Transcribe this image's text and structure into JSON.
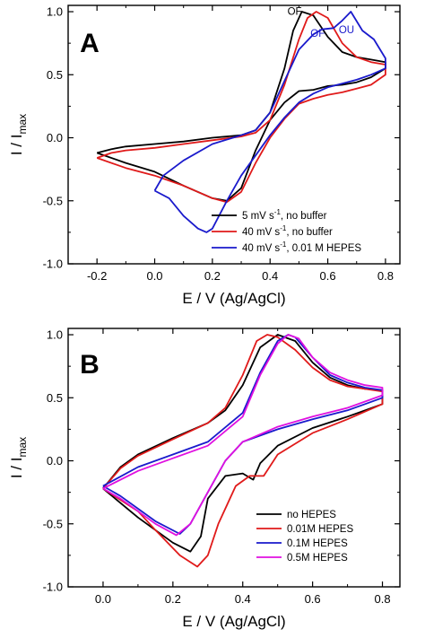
{
  "chart_data": [
    {
      "type": "line",
      "panel": "A",
      "xlabel": "E / V (Ag/AgCl)",
      "ylabel": "I / I",
      "ylabel_sub": "max",
      "xlim": [
        -0.3,
        0.85
      ],
      "ylim": [
        -1.0,
        1.05
      ],
      "xticks": [
        -0.2,
        0.0,
        0.2,
        0.4,
        0.6,
        0.8
      ],
      "xtick_labels": [
        "-0.2",
        "0.0",
        "0.2",
        "0.4",
        "0.6",
        "0.8"
      ],
      "yticks": [
        -1.0,
        -0.5,
        0.0,
        0.5,
        1.0
      ],
      "ytick_labels": [
        "-1.0",
        "-0.5",
        "0.0",
        "0.5",
        "1.0"
      ],
      "legend_position": "lower-right",
      "annotations": [
        {
          "text": "OF",
          "x": 0.485,
          "y": 0.975,
          "color": "#000000"
        },
        {
          "text": "OF",
          "x": 0.565,
          "y": 0.8,
          "color": "#1a1acc"
        },
        {
          "text": "OU",
          "x": 0.665,
          "y": 0.83,
          "color": "#1a1acc"
        }
      ],
      "series": [
        {
          "name": "5 mV s-1, no buffer",
          "legend_main": "5 mV s",
          "legend_sup": "-1",
          "legend_tail": ", no buffer",
          "color": "#000000",
          "points": [
            [
              -0.2,
              -0.12
            ],
            [
              -0.15,
              -0.09
            ],
            [
              -0.1,
              -0.07
            ],
            [
              0.0,
              -0.05
            ],
            [
              0.1,
              -0.03
            ],
            [
              0.2,
              0.0
            ],
            [
              0.3,
              0.02
            ],
            [
              0.35,
              0.06
            ],
            [
              0.4,
              0.2
            ],
            [
              0.45,
              0.55
            ],
            [
              0.48,
              0.85
            ],
            [
              0.51,
              1.0
            ],
            [
              0.55,
              0.97
            ],
            [
              0.6,
              0.8
            ],
            [
              0.65,
              0.68
            ],
            [
              0.7,
              0.64
            ],
            [
              0.75,
              0.62
            ],
            [
              0.8,
              0.6
            ],
            [
              0.8,
              0.55
            ],
            [
              0.75,
              0.48
            ],
            [
              0.7,
              0.44
            ],
            [
              0.65,
              0.42
            ],
            [
              0.6,
              0.41
            ],
            [
              0.55,
              0.38
            ],
            [
              0.5,
              0.37
            ],
            [
              0.45,
              0.28
            ],
            [
              0.4,
              0.14
            ],
            [
              0.35,
              -0.1
            ],
            [
              0.3,
              -0.4
            ],
            [
              0.25,
              -0.5
            ],
            [
              0.2,
              -0.48
            ],
            [
              0.1,
              -0.38
            ],
            [
              0.0,
              -0.27
            ],
            [
              -0.1,
              -0.2
            ],
            [
              -0.2,
              -0.12
            ]
          ]
        },
        {
          "name": "40 mV s-1, no buffer",
          "legend_main": "40 mV s",
          "legend_sup": "-1",
          "legend_tail": ", no buffer",
          "color": "#e01a1a",
          "points": [
            [
              -0.2,
              -0.16
            ],
            [
              -0.15,
              -0.12
            ],
            [
              -0.1,
              -0.1
            ],
            [
              0.0,
              -0.08
            ],
            [
              0.1,
              -0.05
            ],
            [
              0.2,
              -0.02
            ],
            [
              0.3,
              0.01
            ],
            [
              0.35,
              0.04
            ],
            [
              0.4,
              0.14
            ],
            [
              0.45,
              0.42
            ],
            [
              0.5,
              0.78
            ],
            [
              0.53,
              0.95
            ],
            [
              0.56,
              1.0
            ],
            [
              0.6,
              0.95
            ],
            [
              0.65,
              0.75
            ],
            [
              0.7,
              0.64
            ],
            [
              0.75,
              0.6
            ],
            [
              0.8,
              0.58
            ],
            [
              0.8,
              0.5
            ],
            [
              0.75,
              0.42
            ],
            [
              0.7,
              0.39
            ],
            [
              0.65,
              0.36
            ],
            [
              0.6,
              0.34
            ],
            [
              0.55,
              0.31
            ],
            [
              0.5,
              0.27
            ],
            [
              0.45,
              0.15
            ],
            [
              0.4,
              0.0
            ],
            [
              0.35,
              -0.2
            ],
            [
              0.3,
              -0.43
            ],
            [
              0.25,
              -0.51
            ],
            [
              0.2,
              -0.48
            ],
            [
              0.1,
              -0.38
            ],
            [
              0.0,
              -0.3
            ],
            [
              -0.1,
              -0.24
            ],
            [
              -0.2,
              -0.16
            ]
          ]
        },
        {
          "name": "40 mV s-1, 0.01 M HEPES",
          "legend_main": "40 mV s",
          "legend_sup": "-1",
          "legend_tail": ", 0.01 M HEPES",
          "color": "#1a1acc",
          "points": [
            [
              0.0,
              -0.42
            ],
            [
              0.03,
              -0.3
            ],
            [
              0.1,
              -0.18
            ],
            [
              0.2,
              -0.05
            ],
            [
              0.3,
              0.02
            ],
            [
              0.35,
              0.06
            ],
            [
              0.4,
              0.2
            ],
            [
              0.45,
              0.45
            ],
            [
              0.5,
              0.7
            ],
            [
              0.55,
              0.82
            ],
            [
              0.58,
              0.86
            ],
            [
              0.62,
              0.87
            ],
            [
              0.65,
              0.93
            ],
            [
              0.68,
              1.0
            ],
            [
              0.72,
              0.85
            ],
            [
              0.76,
              0.78
            ],
            [
              0.8,
              0.63
            ],
            [
              0.8,
              0.55
            ],
            [
              0.75,
              0.5
            ],
            [
              0.7,
              0.46
            ],
            [
              0.65,
              0.43
            ],
            [
              0.6,
              0.4
            ],
            [
              0.55,
              0.35
            ],
            [
              0.5,
              0.28
            ],
            [
              0.45,
              0.16
            ],
            [
              0.4,
              0.02
            ],
            [
              0.35,
              -0.14
            ],
            [
              0.3,
              -0.3
            ],
            [
              0.25,
              -0.5
            ],
            [
              0.2,
              -0.72
            ],
            [
              0.18,
              -0.75
            ],
            [
              0.15,
              -0.72
            ],
            [
              0.1,
              -0.62
            ],
            [
              0.05,
              -0.48
            ],
            [
              0.0,
              -0.42
            ]
          ]
        }
      ]
    },
    {
      "type": "line",
      "panel": "B",
      "xlabel": "E / V (Ag/AgCl)",
      "ylabel": "I / I",
      "ylabel_sub": "max",
      "xlim": [
        -0.1,
        0.85
      ],
      "ylim": [
        -1.0,
        1.05
      ],
      "xticks": [
        0.0,
        0.2,
        0.4,
        0.6,
        0.8
      ],
      "xtick_labels": [
        "0.0",
        "0.2",
        "0.4",
        "0.6",
        "0.8"
      ],
      "yticks": [
        -1.0,
        -0.5,
        0.0,
        0.5,
        1.0
      ],
      "ytick_labels": [
        "-1.0",
        "-0.5",
        "0.0",
        "0.5",
        "1.0"
      ],
      "legend_position": "lower-right",
      "series": [
        {
          "name": "no HEPES",
          "legend_main": "no HEPES",
          "legend_sup": "",
          "legend_tail": "",
          "color": "#000000",
          "points": [
            [
              0.0,
              -0.22
            ],
            [
              0.05,
              -0.05
            ],
            [
              0.1,
              0.05
            ],
            [
              0.2,
              0.18
            ],
            [
              0.3,
              0.3
            ],
            [
              0.35,
              0.4
            ],
            [
              0.4,
              0.6
            ],
            [
              0.45,
              0.9
            ],
            [
              0.5,
              1.0
            ],
            [
              0.55,
              0.95
            ],
            [
              0.6,
              0.78
            ],
            [
              0.65,
              0.66
            ],
            [
              0.7,
              0.6
            ],
            [
              0.75,
              0.57
            ],
            [
              0.8,
              0.56
            ],
            [
              0.8,
              0.45
            ],
            [
              0.75,
              0.4
            ],
            [
              0.7,
              0.35
            ],
            [
              0.6,
              0.26
            ],
            [
              0.5,
              0.12
            ],
            [
              0.45,
              -0.02
            ],
            [
              0.43,
              -0.15
            ],
            [
              0.4,
              -0.1
            ],
            [
              0.35,
              -0.12
            ],
            [
              0.3,
              -0.3
            ],
            [
              0.28,
              -0.6
            ],
            [
              0.25,
              -0.72
            ],
            [
              0.2,
              -0.65
            ],
            [
              0.1,
              -0.45
            ],
            [
              0.0,
              -0.22
            ]
          ]
        },
        {
          "name": "0.01M HEPES",
          "legend_main": "0.01M HEPES",
          "legend_sup": "",
          "legend_tail": "",
          "color": "#e01a1a",
          "points": [
            [
              0.0,
              -0.22
            ],
            [
              0.05,
              -0.06
            ],
            [
              0.1,
              0.04
            ],
            [
              0.2,
              0.17
            ],
            [
              0.3,
              0.3
            ],
            [
              0.35,
              0.42
            ],
            [
              0.4,
              0.68
            ],
            [
              0.44,
              0.95
            ],
            [
              0.47,
              1.0
            ],
            [
              0.5,
              0.98
            ],
            [
              0.55,
              0.88
            ],
            [
              0.6,
              0.74
            ],
            [
              0.65,
              0.64
            ],
            [
              0.7,
              0.59
            ],
            [
              0.75,
              0.57
            ],
            [
              0.8,
              0.55
            ],
            [
              0.8,
              0.45
            ],
            [
              0.75,
              0.39
            ],
            [
              0.7,
              0.33
            ],
            [
              0.6,
              0.22
            ],
            [
              0.5,
              0.05
            ],
            [
              0.46,
              -0.12
            ],
            [
              0.42,
              -0.12
            ],
            [
              0.38,
              -0.2
            ],
            [
              0.33,
              -0.5
            ],
            [
              0.3,
              -0.75
            ],
            [
              0.27,
              -0.84
            ],
            [
              0.22,
              -0.75
            ],
            [
              0.15,
              -0.55
            ],
            [
              0.1,
              -0.4
            ],
            [
              0.0,
              -0.22
            ]
          ]
        },
        {
          "name": "0.1M HEPES",
          "legend_main": "0.1M HEPES",
          "legend_sup": "",
          "legend_tail": "",
          "color": "#1a1acc",
          "points": [
            [
              0.0,
              -0.2
            ],
            [
              0.1,
              -0.05
            ],
            [
              0.2,
              0.05
            ],
            [
              0.3,
              0.15
            ],
            [
              0.4,
              0.38
            ],
            [
              0.45,
              0.7
            ],
            [
              0.5,
              0.95
            ],
            [
              0.53,
              1.0
            ],
            [
              0.55,
              0.98
            ],
            [
              0.6,
              0.82
            ],
            [
              0.65,
              0.68
            ],
            [
              0.7,
              0.62
            ],
            [
              0.75,
              0.58
            ],
            [
              0.8,
              0.56
            ],
            [
              0.8,
              0.5
            ],
            [
              0.75,
              0.45
            ],
            [
              0.7,
              0.4
            ],
            [
              0.6,
              0.33
            ],
            [
              0.5,
              0.25
            ],
            [
              0.4,
              0.15
            ],
            [
              0.35,
              0.0
            ],
            [
              0.3,
              -0.25
            ],
            [
              0.25,
              -0.5
            ],
            [
              0.22,
              -0.58
            ],
            [
              0.15,
              -0.48
            ],
            [
              0.1,
              -0.38
            ],
            [
              0.05,
              -0.28
            ],
            [
              0.0,
              -0.2
            ]
          ]
        },
        {
          "name": "0.5M HEPES",
          "legend_main": "0.5M HEPES",
          "legend_sup": "",
          "legend_tail": "",
          "color": "#e010e0",
          "points": [
            [
              0.0,
              -0.22
            ],
            [
              0.1,
              -0.08
            ],
            [
              0.2,
              0.02
            ],
            [
              0.3,
              0.12
            ],
            [
              0.4,
              0.35
            ],
            [
              0.45,
              0.68
            ],
            [
              0.5,
              0.93
            ],
            [
              0.53,
              1.0
            ],
            [
              0.56,
              0.97
            ],
            [
              0.6,
              0.82
            ],
            [
              0.65,
              0.7
            ],
            [
              0.7,
              0.64
            ],
            [
              0.75,
              0.6
            ],
            [
              0.8,
              0.58
            ],
            [
              0.8,
              0.52
            ],
            [
              0.75,
              0.47
            ],
            [
              0.7,
              0.42
            ],
            [
              0.6,
              0.35
            ],
            [
              0.5,
              0.27
            ],
            [
              0.4,
              0.15
            ],
            [
              0.35,
              0.0
            ],
            [
              0.3,
              -0.25
            ],
            [
              0.25,
              -0.5
            ],
            [
              0.21,
              -0.59
            ],
            [
              0.15,
              -0.5
            ],
            [
              0.1,
              -0.4
            ],
            [
              0.05,
              -0.3
            ],
            [
              0.0,
              -0.22
            ]
          ]
        }
      ]
    }
  ]
}
